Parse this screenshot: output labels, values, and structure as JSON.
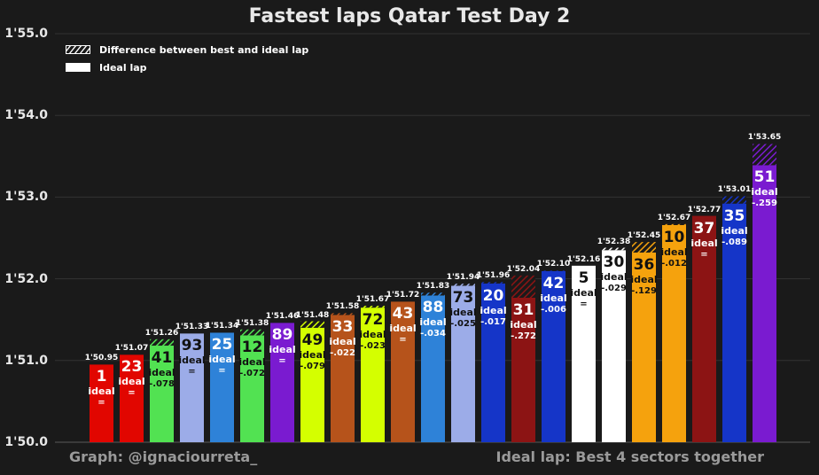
{
  "chart_data": {
    "type": "bar",
    "title": "Fastest laps Qatar Test Day 2",
    "ylim": [
      110.0,
      115.0
    ],
    "yticks": [
      "1'50.0",
      "1'51.0",
      "1'52.0",
      "1'53.0",
      "1'54.0",
      "1'55.0"
    ],
    "ytick_values": [
      110,
      111,
      112,
      113,
      114,
      115
    ],
    "grid": true,
    "legend_position": "top-left",
    "legend": [
      {
        "label": "Difference between best and ideal lap",
        "style": "hatched"
      },
      {
        "label": "Ideal lap",
        "style": "solid"
      }
    ],
    "ideal_text": "ideal",
    "footer_left": "Graph: @ignaciourreta_",
    "footer_right": "Ideal lap: Best 4 sectors together",
    "bars": [
      {
        "number": "1",
        "lap": "1'50.95",
        "best": 110.95,
        "diff_label": "=",
        "diff": 0.0,
        "color": "#e10600",
        "text_color": "#ffffff"
      },
      {
        "number": "23",
        "lap": "1'51.07",
        "best": 111.07,
        "diff_label": "=",
        "diff": 0.0,
        "color": "#e10600",
        "text_color": "#ffffff"
      },
      {
        "number": "41",
        "lap": "1'51.26",
        "best": 111.26,
        "diff_label": "-.078",
        "diff": 0.078,
        "color": "#52e252",
        "text_color": "#111111"
      },
      {
        "number": "93",
        "lap": "1'51.33",
        "best": 111.33,
        "diff_label": "=",
        "diff": 0.0,
        "color": "#9cace8",
        "text_color": "#111111"
      },
      {
        "number": "25",
        "lap": "1'51.34",
        "best": 111.34,
        "diff_label": "=",
        "diff": 0.0,
        "color": "#2e82d8",
        "text_color": "#ffffff"
      },
      {
        "number": "12",
        "lap": "1'51.38",
        "best": 111.38,
        "diff_label": "-.072",
        "diff": 0.072,
        "color": "#52e252",
        "text_color": "#111111"
      },
      {
        "number": "89",
        "lap": "1'51.46",
        "best": 111.46,
        "diff_label": "=",
        "diff": 0.0,
        "color": "#7a1bd0",
        "text_color": "#ffffff"
      },
      {
        "number": "49",
        "lap": "1'51.48",
        "best": 111.48,
        "diff_label": "-.079",
        "diff": 0.079,
        "color": "#d4ff00",
        "text_color": "#111111"
      },
      {
        "number": "33",
        "lap": "1'51.58",
        "best": 111.58,
        "diff_label": "-.022",
        "diff": 0.022,
        "color": "#b6531b",
        "text_color": "#ffffff"
      },
      {
        "number": "72",
        "lap": "1'51.67",
        "best": 111.67,
        "diff_label": "-.023",
        "diff": 0.023,
        "color": "#d4ff00",
        "text_color": "#111111"
      },
      {
        "number": "43",
        "lap": "1'51.72",
        "best": 111.72,
        "diff_label": "=",
        "diff": 0.0,
        "color": "#b6531b",
        "text_color": "#ffffff"
      },
      {
        "number": "88",
        "lap": "1'51.83",
        "best": 111.83,
        "diff_label": "-.034",
        "diff": 0.034,
        "color": "#2e82d8",
        "text_color": "#ffffff"
      },
      {
        "number": "73",
        "lap": "1'51.94",
        "best": 111.94,
        "diff_label": "-.025",
        "diff": 0.025,
        "color": "#9cace8",
        "text_color": "#111111"
      },
      {
        "number": "20",
        "lap": "1'51.96",
        "best": 111.96,
        "diff_label": "-.017",
        "diff": 0.017,
        "color": "#1535c8",
        "text_color": "#ffffff"
      },
      {
        "number": "31",
        "lap": "1'52.04",
        "best": 112.04,
        "diff_label": "-.272",
        "diff": 0.272,
        "color": "#8c1414",
        "text_color": "#ffffff"
      },
      {
        "number": "42",
        "lap": "1'52.10",
        "best": 112.1,
        "diff_label": "-.006",
        "diff": 0.006,
        "color": "#1535c8",
        "text_color": "#ffffff"
      },
      {
        "number": "5",
        "lap": "1'52.16",
        "best": 112.16,
        "diff_label": "=",
        "diff": 0.0,
        "color": "#ffffff",
        "text_color": "#111111"
      },
      {
        "number": "30",
        "lap": "1'52.38",
        "best": 112.38,
        "diff_label": "-.029",
        "diff": 0.029,
        "color": "#ffffff",
        "text_color": "#111111"
      },
      {
        "number": "36",
        "lap": "1'52.45",
        "best": 112.45,
        "diff_label": "-.129",
        "diff": 0.129,
        "color": "#f5a20d",
        "text_color": "#111111"
      },
      {
        "number": "10",
        "lap": "1'52.67",
        "best": 112.67,
        "diff_label": "-.012",
        "diff": 0.012,
        "color": "#f5a20d",
        "text_color": "#111111"
      },
      {
        "number": "37",
        "lap": "1'52.77",
        "best": 112.77,
        "diff_label": "=",
        "diff": 0.0,
        "color": "#8c1414",
        "text_color": "#ffffff"
      },
      {
        "number": "35",
        "lap": "1'53.01",
        "best": 113.01,
        "diff_label": "-.089",
        "diff": 0.089,
        "color": "#1535c8",
        "text_color": "#ffffff"
      },
      {
        "number": "51",
        "lap": "1'53.65",
        "best": 113.65,
        "diff_label": "-.259",
        "diff": 0.259,
        "color": "#7a1bd0",
        "text_color": "#ffffff"
      }
    ]
  }
}
